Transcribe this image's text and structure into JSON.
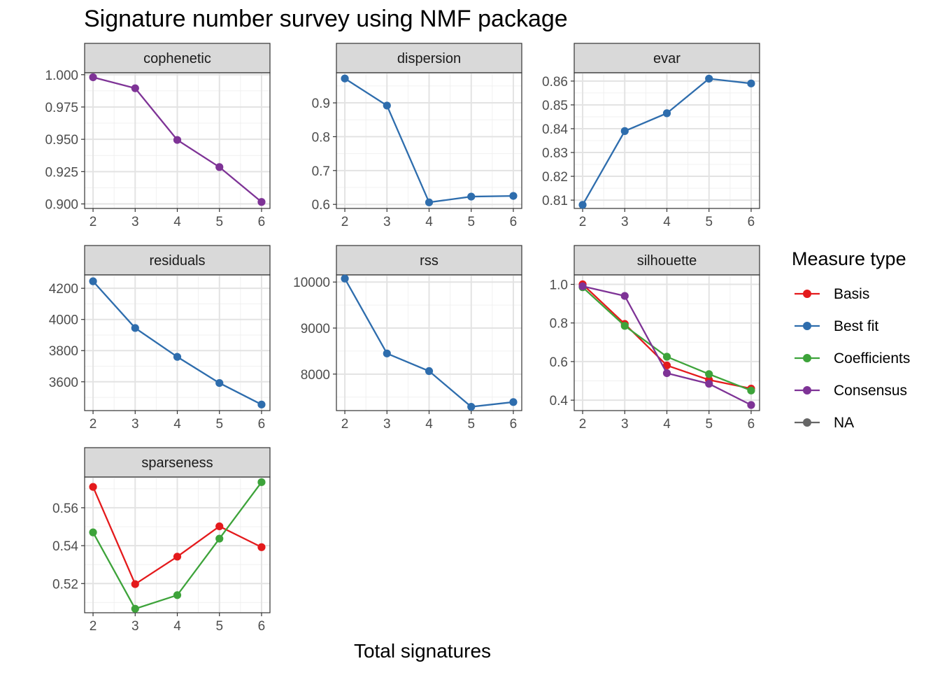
{
  "title": "Signature number survey using NMF package",
  "xlabel": "Total signatures",
  "legend": {
    "title": "Measure type",
    "items": [
      {
        "name": "Basis",
        "color": "#E41A1C"
      },
      {
        "name": "Best fit",
        "color": "#2E6DAD"
      },
      {
        "name": "Coefficients",
        "color": "#3DA33A"
      },
      {
        "name": "Consensus",
        "color": "#7E3396"
      },
      {
        "name": "NA",
        "color": "#666666"
      }
    ]
  },
  "chart_data": [
    {
      "type": "line",
      "title": "cophenetic",
      "x": [
        2,
        3,
        4,
        5,
        6
      ],
      "ylim": [
        0.8965,
        1.0015
      ],
      "yticks": [
        "0.900",
        "0.925",
        "0.950",
        "0.975",
        "1.000"
      ],
      "series": [
        {
          "name": "Consensus",
          "values": [
            0.998,
            0.9895,
            0.9495,
            0.9285,
            0.9015
          ]
        }
      ]
    },
    {
      "type": "line",
      "title": "dispersion",
      "x": [
        2,
        3,
        4,
        5,
        6
      ],
      "ylim": [
        0.588,
        0.989
      ],
      "yticks": [
        "0.6",
        "0.7",
        "0.8",
        "0.9"
      ],
      "series": [
        {
          "name": "Best fit",
          "values": [
            0.972,
            0.892,
            0.606,
            0.623,
            0.625
          ]
        }
      ]
    },
    {
      "type": "line",
      "title": "evar",
      "x": [
        2,
        3,
        4,
        5,
        6
      ],
      "ylim": [
        0.8065,
        0.8635
      ],
      "yticks": [
        "0.81",
        "0.82",
        "0.83",
        "0.84",
        "0.85",
        "0.86"
      ],
      "series": [
        {
          "name": "Best fit",
          "values": [
            0.808,
            0.839,
            0.8465,
            0.861,
            0.859
          ]
        }
      ]
    },
    {
      "type": "line",
      "title": "residuals",
      "x": [
        2,
        3,
        4,
        5,
        6
      ],
      "ylim": [
        3415,
        4286
      ],
      "yticks": [
        "3600",
        "3800",
        "4000",
        "4200"
      ],
      "series": [
        {
          "name": "Best fit",
          "values": [
            4245,
            3945,
            3760,
            3592,
            3454
          ]
        }
      ]
    },
    {
      "type": "line",
      "title": "rss",
      "x": [
        2,
        3,
        4,
        5,
        6
      ],
      "ylim": [
        7207,
        10155
      ],
      "yticks": [
        "8000",
        "9000",
        "10000"
      ],
      "series": [
        {
          "name": "Best fit",
          "values": [
            10075,
            8448,
            8065,
            7290,
            7392
          ]
        }
      ]
    },
    {
      "type": "line",
      "title": "silhouette",
      "x": [
        2,
        3,
        4,
        5,
        6
      ],
      "ylim": [
        0.346,
        1.049
      ],
      "yticks": [
        "0.4",
        "0.6",
        "0.8",
        "1.0"
      ],
      "series": [
        {
          "name": "Basis",
          "values": [
            1.0,
            0.795,
            0.58,
            0.505,
            0.46
          ]
        },
        {
          "name": "Coefficients",
          "values": [
            0.985,
            0.785,
            0.625,
            0.535,
            0.45
          ]
        },
        {
          "name": "Consensus",
          "values": [
            0.99,
            0.94,
            0.54,
            0.485,
            0.375
          ]
        }
      ]
    },
    {
      "type": "line",
      "title": "sparseness",
      "x": [
        2,
        3,
        4,
        5,
        6
      ],
      "ylim": [
        0.5046,
        0.5762
      ],
      "yticks": [
        "0.52",
        "0.54",
        "0.56"
      ],
      "series": [
        {
          "name": "Basis",
          "values": [
            0.571,
            0.5197,
            0.5342,
            0.5502,
            0.5392
          ]
        },
        {
          "name": "Coefficients",
          "values": [
            0.547,
            0.5067,
            0.5139,
            0.5437,
            0.5735
          ]
        }
      ]
    }
  ]
}
